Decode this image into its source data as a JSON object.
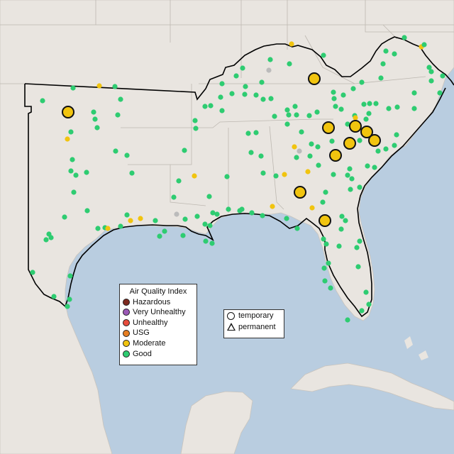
{
  "legend": {
    "title": "Air Quality Index",
    "categories": [
      {
        "label": "Hazardous",
        "color": "#7e2a1f"
      },
      {
        "label": "Very Unhealthy",
        "color": "#9b59b6"
      },
      {
        "label": "Unhealthy",
        "color": "#e74c3c"
      },
      {
        "label": "USG",
        "color": "#e67e22"
      },
      {
        "label": "Moderate",
        "color": "#f1c40f"
      },
      {
        "label": "Good",
        "color": "#2ecc71"
      }
    ]
  },
  "monitor_types": [
    {
      "label": "temporary",
      "icon": "circle-icon"
    },
    {
      "label": "permanent",
      "icon": "triangle-icon"
    }
  ],
  "colors": {
    "water": "#b9cde0",
    "land": "#e9e5e0",
    "border": "#000000",
    "no_data": "#bbbbbb"
  }
}
